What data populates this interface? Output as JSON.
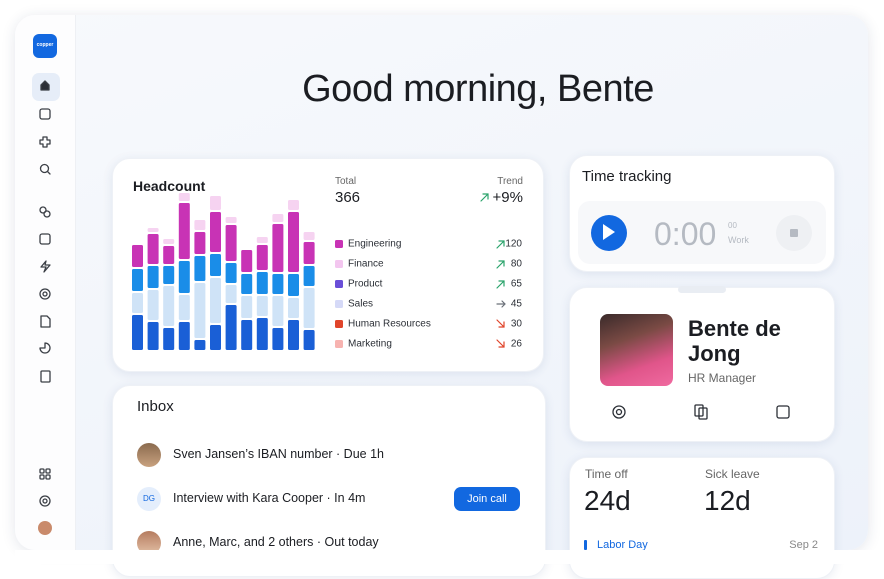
{
  "sidebar": {
    "logo": "copper"
  },
  "greeting": "Good morning, Bente",
  "headcount": {
    "title": "Headcount",
    "total_label": "Total",
    "total": 366,
    "trend_label": "Trend",
    "trend": "+9%",
    "legend": [
      {
        "name": "Engineering",
        "value": 120,
        "color": "#c833b5",
        "direction": "up"
      },
      {
        "name": "Finance",
        "value": 80,
        "color": "#f3c6ef",
        "direction": "up"
      },
      {
        "name": "Product",
        "value": 65,
        "color": "#6a4fd8",
        "direction": "up"
      },
      {
        "name": "Sales",
        "value": 45,
        "color": "#d5d9f7",
        "direction": "flat"
      },
      {
        "name": "Human Resources",
        "value": 30,
        "color": "#e0452b",
        "direction": "down"
      },
      {
        "name": "Marketing",
        "value": 26,
        "color": "#f7b3b0",
        "direction": "down"
      }
    ],
    "chart": {
      "type": "bar",
      "stacked": true,
      "series": [
        {
          "color": "#1a5fd6",
          "values": [
            35,
            28,
            22,
            28,
            10,
            25,
            45,
            30,
            32,
            22,
            30,
            20
          ]
        },
        {
          "color": "#cfe3f7",
          "values": [
            20,
            30,
            40,
            25,
            55,
            45,
            18,
            22,
            20,
            30,
            20,
            40
          ]
        },
        {
          "color": "#1a8de8",
          "values": [
            22,
            22,
            18,
            32,
            25,
            22,
            20,
            20,
            22,
            20,
            22,
            20
          ]
        },
        {
          "color": "#c833b5",
          "values": [
            22,
            30,
            18,
            56,
            22,
            40,
            36,
            22,
            25,
            48,
            60,
            22
          ]
        },
        {
          "color": "#f6d3f1",
          "values": [
            0,
            4,
            5,
            8,
            10,
            14,
            6,
            0,
            6,
            8,
            10,
            8
          ]
        }
      ]
    }
  },
  "time_tracking": {
    "title": "Time tracking",
    "time": "0:00",
    "seconds": "00",
    "mode": "Work"
  },
  "profile": {
    "name": "Bente de Jong",
    "role": "HR Manager"
  },
  "inbox": {
    "title": "Inbox",
    "items": [
      {
        "text": "Sven Jansen’s IBAN number · Due 1h"
      },
      {
        "initials": "DG",
        "text": "Interview with Kara Cooper · In 4m",
        "action": "Join call"
      },
      {
        "text": "Anne, Marc, and 2 others · Out today"
      }
    ]
  },
  "leave": {
    "time_off_label": "Time off",
    "time_off": "24d",
    "sick_label": "Sick leave",
    "sick": "12d",
    "holiday": "Labor Day",
    "holiday_date": "Sep 2"
  }
}
